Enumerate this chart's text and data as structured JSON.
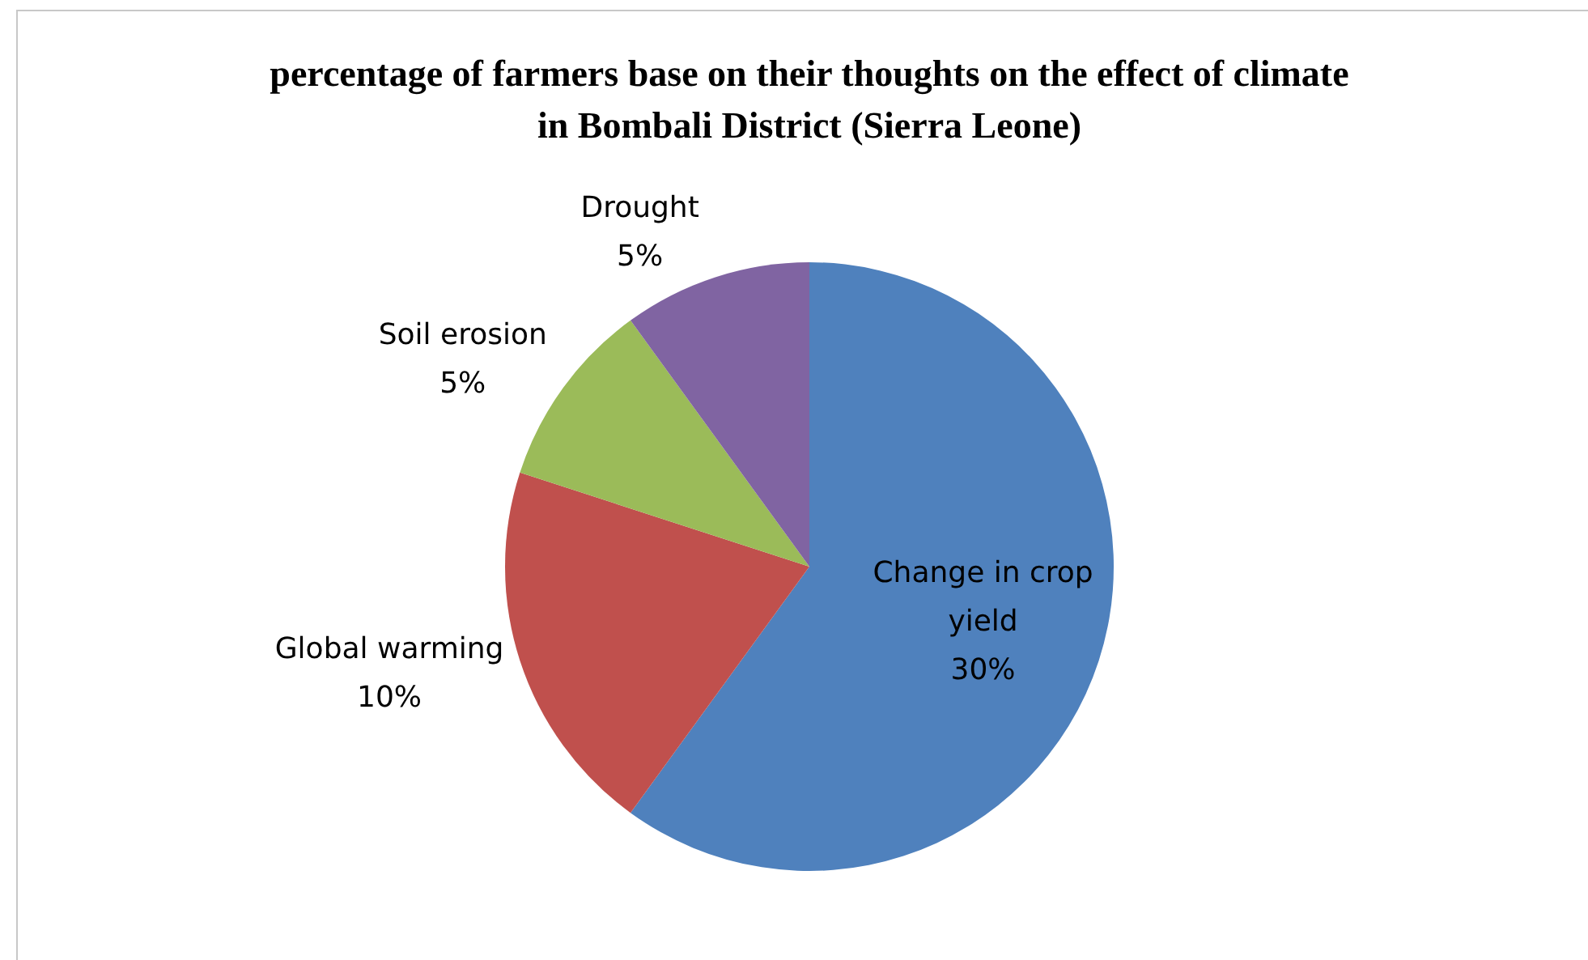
{
  "chart_data": {
    "type": "pie",
    "title": "percentage of farmers base on their thoughts on the effect of climate in Bombali District (Sierra Leone)",
    "categories": [
      "Change in crop yield",
      "Global warming",
      "Soil erosion",
      "Drought"
    ],
    "values": [
      30,
      10,
      5,
      5
    ],
    "colors": [
      "#4f81bd",
      "#c0504d",
      "#9bbb59",
      "#8064a2"
    ],
    "value_labels": [
      "30%",
      "10%",
      "5%",
      "5%"
    ],
    "legend": false
  }
}
